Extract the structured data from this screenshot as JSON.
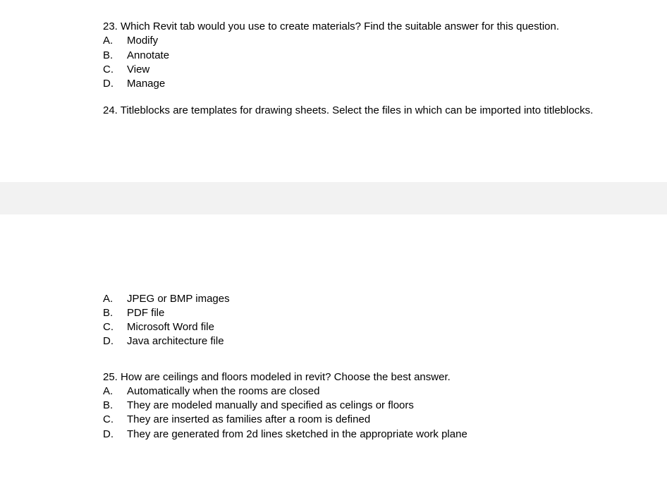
{
  "q23": {
    "prompt": "23. Which Revit tab would you use to create materials? Find the suitable answer for this question.",
    "options": [
      {
        "letter": "A.",
        "text": "Modify"
      },
      {
        "letter": "B.",
        "text": "Annotate"
      },
      {
        "letter": "C.",
        "text": "View"
      },
      {
        "letter": "D.",
        "text": "Manage"
      }
    ]
  },
  "q24": {
    "prompt": "24.  Titleblocks are templates for drawing sheets. Select the files in which can be imported into titleblocks.",
    "options": [
      {
        "letter": "A.",
        "text": "JPEG or BMP images"
      },
      {
        "letter": "B.",
        "text": "PDF file"
      },
      {
        "letter": "C.",
        "text": "Microsoft Word file"
      },
      {
        "letter": "D.",
        "text": "Java architecture file"
      }
    ]
  },
  "q25": {
    "prompt": "25. How are ceilings and floors modeled in revit? Choose the best answer.",
    "options": [
      {
        "letter": "A.",
        "text": "Automatically when the rooms are closed"
      },
      {
        "letter": "B.",
        "text": "They are modeled manually and specified as celings or floors"
      },
      {
        "letter": "C.",
        "text": "They are inserted as families after a room is defined"
      },
      {
        "letter": "D.",
        "text": "They are generated from 2d lines sketched in the appropriate work plane"
      }
    ]
  }
}
